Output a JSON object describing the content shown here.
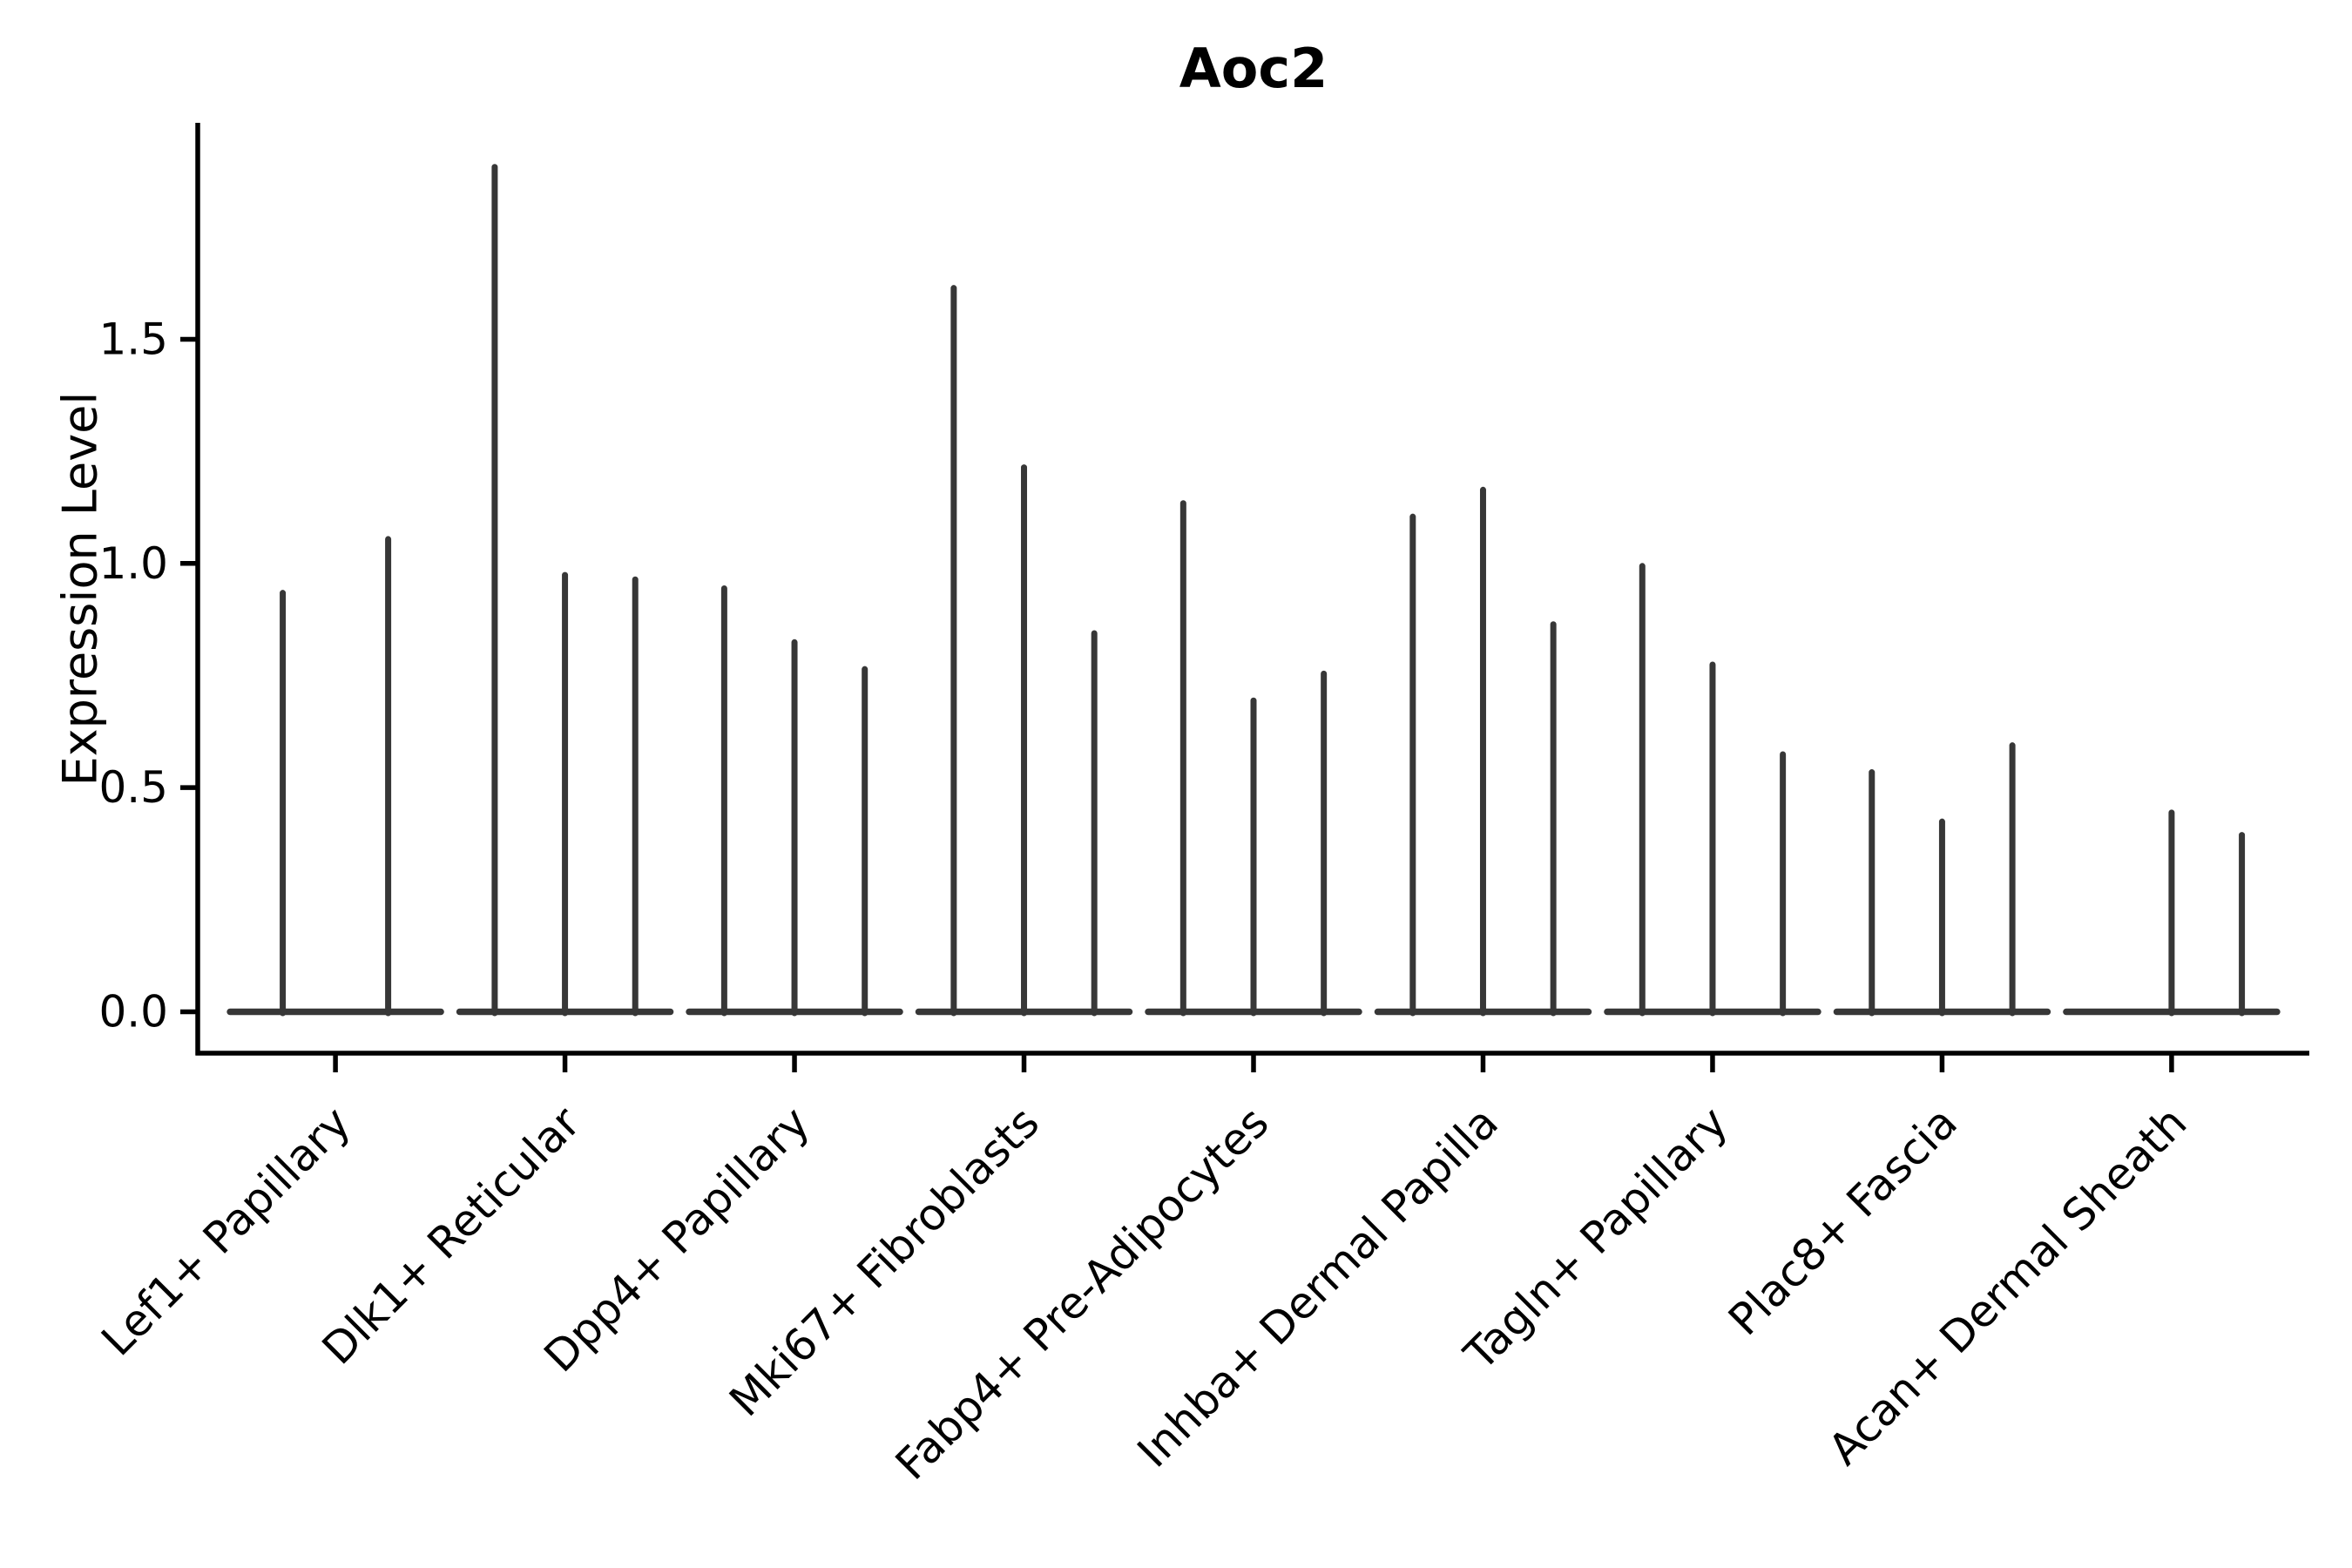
{
  "chart_data": {
    "type": "violin",
    "title": "Aoc2",
    "ylabel": "Expression Level",
    "xlabel": "",
    "grid": false,
    "legend": "none",
    "ylim": [
      0,
      1.98
    ],
    "ytick_labels": [
      "0.0",
      "0.5",
      "1.0",
      "1.5"
    ],
    "ytick_values": [
      0.0,
      0.5,
      1.0,
      1.5
    ],
    "categories": [
      "Lef1+ Papillary",
      "Dlk1+ Reticular",
      "Dpp4+ Papillary",
      "Mki67+ Fibroblasts",
      "Fabp4+ Pre-Adipocytes",
      "Inhba+ Dermal Papilla",
      "Tagln+ Papillary",
      "Plac8+ Fascia",
      "Acan+ Dermal Sheath"
    ],
    "violins": [
      {
        "category": "Lef1+ Papillary",
        "spike_maxima": [
          0.94,
          1.06
        ]
      },
      {
        "category": "Dlk1+ Reticular",
        "spike_maxima": [
          1.89,
          0.98,
          0.97
        ]
      },
      {
        "category": "Dpp4+ Papillary",
        "spike_maxima": [
          0.95,
          0.83,
          0.77
        ]
      },
      {
        "category": "Mki67+ Fibroblasts",
        "spike_maxima": [
          1.62,
          1.22,
          0.85
        ]
      },
      {
        "category": "Fabp4+ Pre-Adipocytes",
        "spike_maxima": [
          1.14,
          0.7,
          0.76
        ]
      },
      {
        "category": "Inhba+ Dermal Papilla",
        "spike_maxima": [
          1.11,
          1.17,
          0.87
        ]
      },
      {
        "category": "Tagln+ Papillary",
        "spike_maxima": [
          1.0,
          0.78,
          0.58
        ]
      },
      {
        "category": "Plac8+ Fascia",
        "spike_maxima": [
          0.54,
          0.43,
          0.6
        ]
      },
      {
        "category": "Acan+ Dermal Sheath",
        "spike_maxima": [
          0.0,
          0.45,
          0.4
        ]
      }
    ],
    "colors": {
      "violin": "#373737",
      "axis": "#000000",
      "text": "#000000",
      "background": "#ffffff"
    }
  }
}
